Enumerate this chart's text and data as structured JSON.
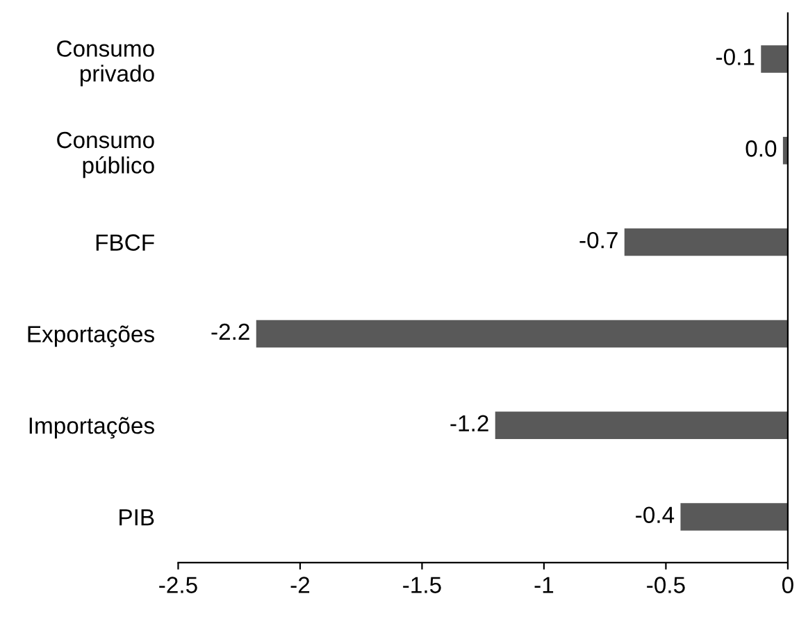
{
  "chart_data": {
    "type": "bar",
    "orientation": "horizontal",
    "categories": [
      "Consumo\nprivado",
      "Consumo\npúblico",
      "FBCF",
      "Exportações",
      "Importações",
      "PIB"
    ],
    "values": [
      -0.11,
      -0.02,
      -0.67,
      -2.18,
      -1.2,
      -0.44
    ],
    "value_labels": [
      "-0.1",
      "0.0",
      "-0.7",
      "-2.2",
      "-1.2",
      "-0.4"
    ],
    "color": "#595959",
    "xlim": [
      -2.5,
      0
    ],
    "xticks": [
      -2.5,
      -2,
      -1.5,
      -1,
      -0.5,
      0
    ],
    "grid": false,
    "legend": false
  }
}
